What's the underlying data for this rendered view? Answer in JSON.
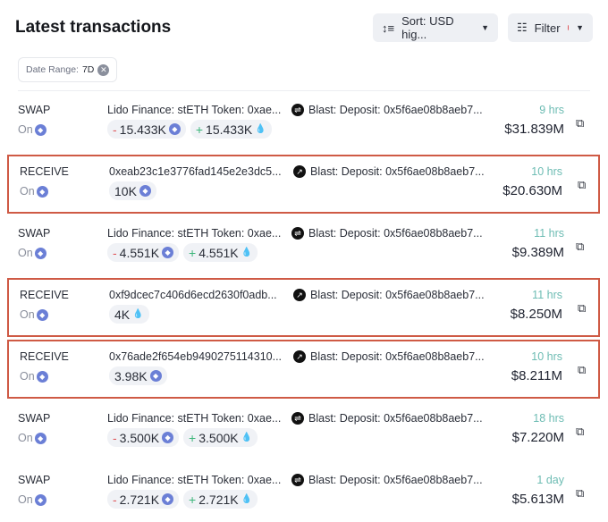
{
  "header": {
    "title": "Latest transactions",
    "sort_label": "Sort: USD hig...",
    "filter_label": "Filter"
  },
  "chip": {
    "label": "Date Range:",
    "value": "7D"
  },
  "colors": {
    "highlight": "#cf5a45",
    "time": "#6dbcb3",
    "minus": "#e0575b",
    "plus": "#3cb67a"
  },
  "rows": [
    {
      "type": "SWAP",
      "on": "On",
      "from": "Lido Finance: stETH Token: 0xae...",
      "icon": "swap-icon",
      "to": "Blast: Deposit: 0x5f6ae08b8aeb7...",
      "amounts": [
        {
          "sign": "-",
          "value": "15.433K",
          "token": "eth"
        },
        {
          "sign": "+",
          "value": "15.433K",
          "token": "steth"
        }
      ],
      "time": "9 hrs",
      "usd": "$31.839M",
      "highlighted": false
    },
    {
      "type": "RECEIVE",
      "on": "On",
      "from": "0xeab23c1e3776fad145e2e3dc5...",
      "icon": "arrow-up-right-icon",
      "to": "Blast: Deposit: 0x5f6ae08b8aeb7...",
      "amounts": [
        {
          "sign": "",
          "value": "10K",
          "token": "eth"
        }
      ],
      "time": "10 hrs",
      "usd": "$20.630M",
      "highlighted": true
    },
    {
      "type": "SWAP",
      "on": "On",
      "from": "Lido Finance: stETH Token: 0xae...",
      "icon": "swap-icon",
      "to": "Blast: Deposit: 0x5f6ae08b8aeb7...",
      "amounts": [
        {
          "sign": "-",
          "value": "4.551K",
          "token": "eth"
        },
        {
          "sign": "+",
          "value": "4.551K",
          "token": "steth"
        }
      ],
      "time": "11 hrs",
      "usd": "$9.389M",
      "highlighted": false
    },
    {
      "type": "RECEIVE",
      "on": "On",
      "from": "0xf9dcec7c406d6ecd2630f0adb...",
      "icon": "arrow-up-right-icon",
      "to": "Blast: Deposit: 0x5f6ae08b8aeb7...",
      "amounts": [
        {
          "sign": "",
          "value": "4K",
          "token": "steth"
        }
      ],
      "time": "11 hrs",
      "usd": "$8.250M",
      "highlighted": true
    },
    {
      "type": "RECEIVE",
      "on": "On",
      "from": "0x76ade2f654eb9490275114310...",
      "icon": "arrow-up-right-icon",
      "to": "Blast: Deposit: 0x5f6ae08b8aeb7...",
      "amounts": [
        {
          "sign": "",
          "value": "3.98K",
          "token": "eth"
        }
      ],
      "time": "10 hrs",
      "usd": "$8.211M",
      "highlighted": true
    },
    {
      "type": "SWAP",
      "on": "On",
      "from": "Lido Finance: stETH Token: 0xae...",
      "icon": "swap-icon",
      "to": "Blast: Deposit: 0x5f6ae08b8aeb7...",
      "amounts": [
        {
          "sign": "-",
          "value": "3.500K",
          "token": "eth"
        },
        {
          "sign": "+",
          "value": "3.500K",
          "token": "steth"
        }
      ],
      "time": "18 hrs",
      "usd": "$7.220M",
      "highlighted": false
    },
    {
      "type": "SWAP",
      "on": "On",
      "from": "Lido Finance: stETH Token: 0xae...",
      "icon": "swap-icon",
      "to": "Blast: Deposit: 0x5f6ae08b8aeb7...",
      "amounts": [
        {
          "sign": "-",
          "value": "2.721K",
          "token": "eth"
        },
        {
          "sign": "+",
          "value": "2.721K",
          "token": "steth"
        }
      ],
      "time": "1 day",
      "usd": "$5.613M",
      "highlighted": false
    }
  ]
}
